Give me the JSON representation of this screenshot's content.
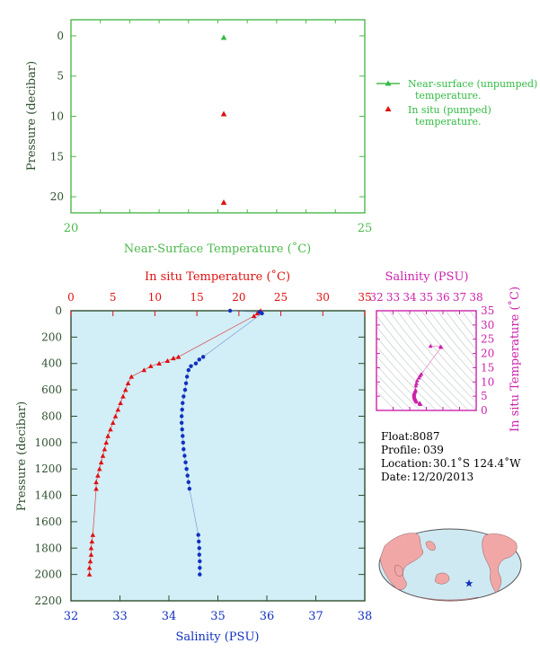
{
  "chart_data": [
    {
      "type": "scatter",
      "ylabel": "Pressure (decibar)",
      "xlabel": "Near-Surface Temperature (˚C)",
      "xlim": [
        20,
        25
      ],
      "ylim": [
        22,
        -2
      ],
      "xticks": [
        "20",
        "25"
      ],
      "yticks": [
        "0",
        "5",
        "10",
        "15",
        "20"
      ],
      "ytick_values": [
        0,
        5,
        10,
        15,
        20
      ],
      "series": [
        {
          "name": "Near-surface (unpumped) temperature.",
          "color": "#33bb44",
          "marker": "triangle",
          "points": [
            {
              "x": 22.6,
              "y": 0.2
            }
          ]
        },
        {
          "name": "In situ (pumped) temperature.",
          "color": "#e01010",
          "marker": "triangle",
          "points": [
            {
              "x": 22.6,
              "y": 9.7
            },
            {
              "x": 22.6,
              "y": 20.7
            }
          ]
        }
      ],
      "legend": {
        "placement": "right",
        "entries": [
          {
            "line1": "Near-surface (unpumped)",
            "line2": "temperature.",
            "color": "#33bb44"
          },
          {
            "line1": "In situ (pumped)",
            "line2": "temperature.",
            "color": "#e01010"
          }
        ]
      }
    },
    {
      "type": "line",
      "title": "In situ Temperature (˚C)",
      "xlabel": "Salinity (PSU)",
      "ylabel": "Pressure (decibar)",
      "temp_axis": {
        "range": [
          0,
          35
        ],
        "ticks": [
          "0",
          "5",
          "10",
          "15",
          "20",
          "25",
          "30",
          "35"
        ],
        "color": "#e01010"
      },
      "salinity_axis": {
        "range": [
          32,
          38
        ],
        "ticks": [
          "32",
          "33",
          "34",
          "35",
          "36",
          "37",
          "38"
        ],
        "color": "#1030c0"
      },
      "pressure_axis": {
        "range": [
          0,
          2200
        ],
        "ticks": [
          "0",
          "200",
          "400",
          "600",
          "800",
          "1000",
          "1200",
          "1400",
          "1600",
          "1800",
          "2000",
          "2200"
        ]
      },
      "background": "#d2eef7",
      "series": [
        {
          "name": "Temperature",
          "color": "#e01010",
          "marker": "triangle",
          "points": [
            [
              22.6,
              0
            ],
            [
              22.4,
              10
            ],
            [
              22.2,
              20
            ],
            [
              21.8,
              40
            ],
            [
              12.8,
              350
            ],
            [
              12.2,
              360
            ],
            [
              11.5,
              380
            ],
            [
              10.5,
              400
            ],
            [
              9.5,
              420
            ],
            [
              8.7,
              450
            ],
            [
              7.2,
              500
            ],
            [
              6.8,
              550
            ],
            [
              6.5,
              600
            ],
            [
              6.2,
              650
            ],
            [
              5.9,
              700
            ],
            [
              5.6,
              750
            ],
            [
              5.3,
              800
            ],
            [
              5.0,
              850
            ],
            [
              4.7,
              900
            ],
            [
              4.4,
              950
            ],
            [
              4.2,
              1000
            ],
            [
              4.0,
              1050
            ],
            [
              3.8,
              1100
            ],
            [
              3.6,
              1150
            ],
            [
              3.4,
              1200
            ],
            [
              3.2,
              1250
            ],
            [
              3.0,
              1300
            ],
            [
              3.0,
              1350
            ],
            [
              2.6,
              1700
            ],
            [
              2.5,
              1750
            ],
            [
              2.4,
              1800
            ],
            [
              2.4,
              1850
            ],
            [
              2.3,
              1900
            ],
            [
              2.2,
              1950
            ],
            [
              2.2,
              2000
            ]
          ]
        },
        {
          "name": "Salinity",
          "color": "#1030c0",
          "marker": "circle",
          "points": [
            [
              35.25,
              0
            ],
            [
              35.85,
              10
            ],
            [
              35.9,
              20
            ],
            [
              34.7,
              350
            ],
            [
              34.62,
              370
            ],
            [
              34.55,
              400
            ],
            [
              34.45,
              420
            ],
            [
              34.4,
              450
            ],
            [
              34.37,
              500
            ],
            [
              34.35,
              550
            ],
            [
              34.33,
              600
            ],
            [
              34.3,
              650
            ],
            [
              34.28,
              700
            ],
            [
              34.27,
              750
            ],
            [
              34.26,
              800
            ],
            [
              34.26,
              850
            ],
            [
              34.27,
              900
            ],
            [
              34.28,
              950
            ],
            [
              34.29,
              1000
            ],
            [
              34.3,
              1050
            ],
            [
              34.32,
              1100
            ],
            [
              34.34,
              1150
            ],
            [
              34.36,
              1200
            ],
            [
              34.38,
              1250
            ],
            [
              34.4,
              1300
            ],
            [
              34.42,
              1350
            ],
            [
              34.6,
              1700
            ],
            [
              34.61,
              1750
            ],
            [
              34.62,
              1800
            ],
            [
              34.62,
              1850
            ],
            [
              34.63,
              1900
            ],
            [
              34.63,
              1950
            ],
            [
              34.63,
              2000
            ]
          ]
        }
      ]
    },
    {
      "type": "scatter",
      "title": "Salinity (PSU)",
      "ylabel": "In situ Temperature (˚C)",
      "xlim": [
        32,
        38
      ],
      "ylim": [
        0,
        35
      ],
      "xticks": [
        "32",
        "33",
        "34",
        "35",
        "36",
        "37",
        "38"
      ],
      "yticks": [
        "0",
        "5",
        "10",
        "15",
        "20",
        "25",
        "30",
        "35"
      ],
      "color": "#cc22aa",
      "points": [
        [
          35.25,
          22.6
        ],
        [
          35.85,
          22.4
        ],
        [
          35.9,
          22.2
        ],
        [
          34.7,
          12.8
        ],
        [
          34.62,
          12.2
        ],
        [
          34.55,
          11.5
        ],
        [
          34.45,
          10.5
        ],
        [
          34.4,
          9.5
        ],
        [
          34.37,
          8.7
        ],
        [
          34.35,
          7.2
        ],
        [
          34.33,
          6.8
        ],
        [
          34.3,
          6.5
        ],
        [
          34.28,
          6.2
        ],
        [
          34.27,
          5.9
        ],
        [
          34.26,
          5.6
        ],
        [
          34.26,
          5.3
        ],
        [
          34.27,
          5.0
        ],
        [
          34.28,
          4.7
        ],
        [
          34.29,
          4.4
        ],
        [
          34.3,
          4.2
        ],
        [
          34.32,
          4.0
        ],
        [
          34.34,
          3.8
        ],
        [
          34.36,
          3.6
        ],
        [
          34.38,
          3.4
        ],
        [
          34.4,
          3.2
        ],
        [
          34.42,
          3.0
        ],
        [
          34.6,
          2.6
        ],
        [
          34.61,
          2.5
        ],
        [
          34.62,
          2.4
        ],
        [
          34.63,
          2.3
        ],
        [
          34.63,
          2.2
        ]
      ]
    }
  ],
  "info": {
    "float_label": "Float:",
    "float_value": "8087",
    "profile_label": "Profile:",
    "profile_value": "039",
    "location_label": "Location:",
    "location_value": "30.1˚S  124.4˚W",
    "date_label": "Date:",
    "date_value": "12/20/2013"
  },
  "map": {
    "ocean_color": "#cfe9f3",
    "land_color": "#f2a7a7",
    "marker_color": "#1030c0",
    "marker": "star"
  },
  "colors": {
    "axis_green": "#4cb84c",
    "label_dark": "#2f4f2f",
    "temp_red": "#e01010",
    "sal_blue": "#1030c0",
    "ts_magenta": "#cc22aa"
  }
}
